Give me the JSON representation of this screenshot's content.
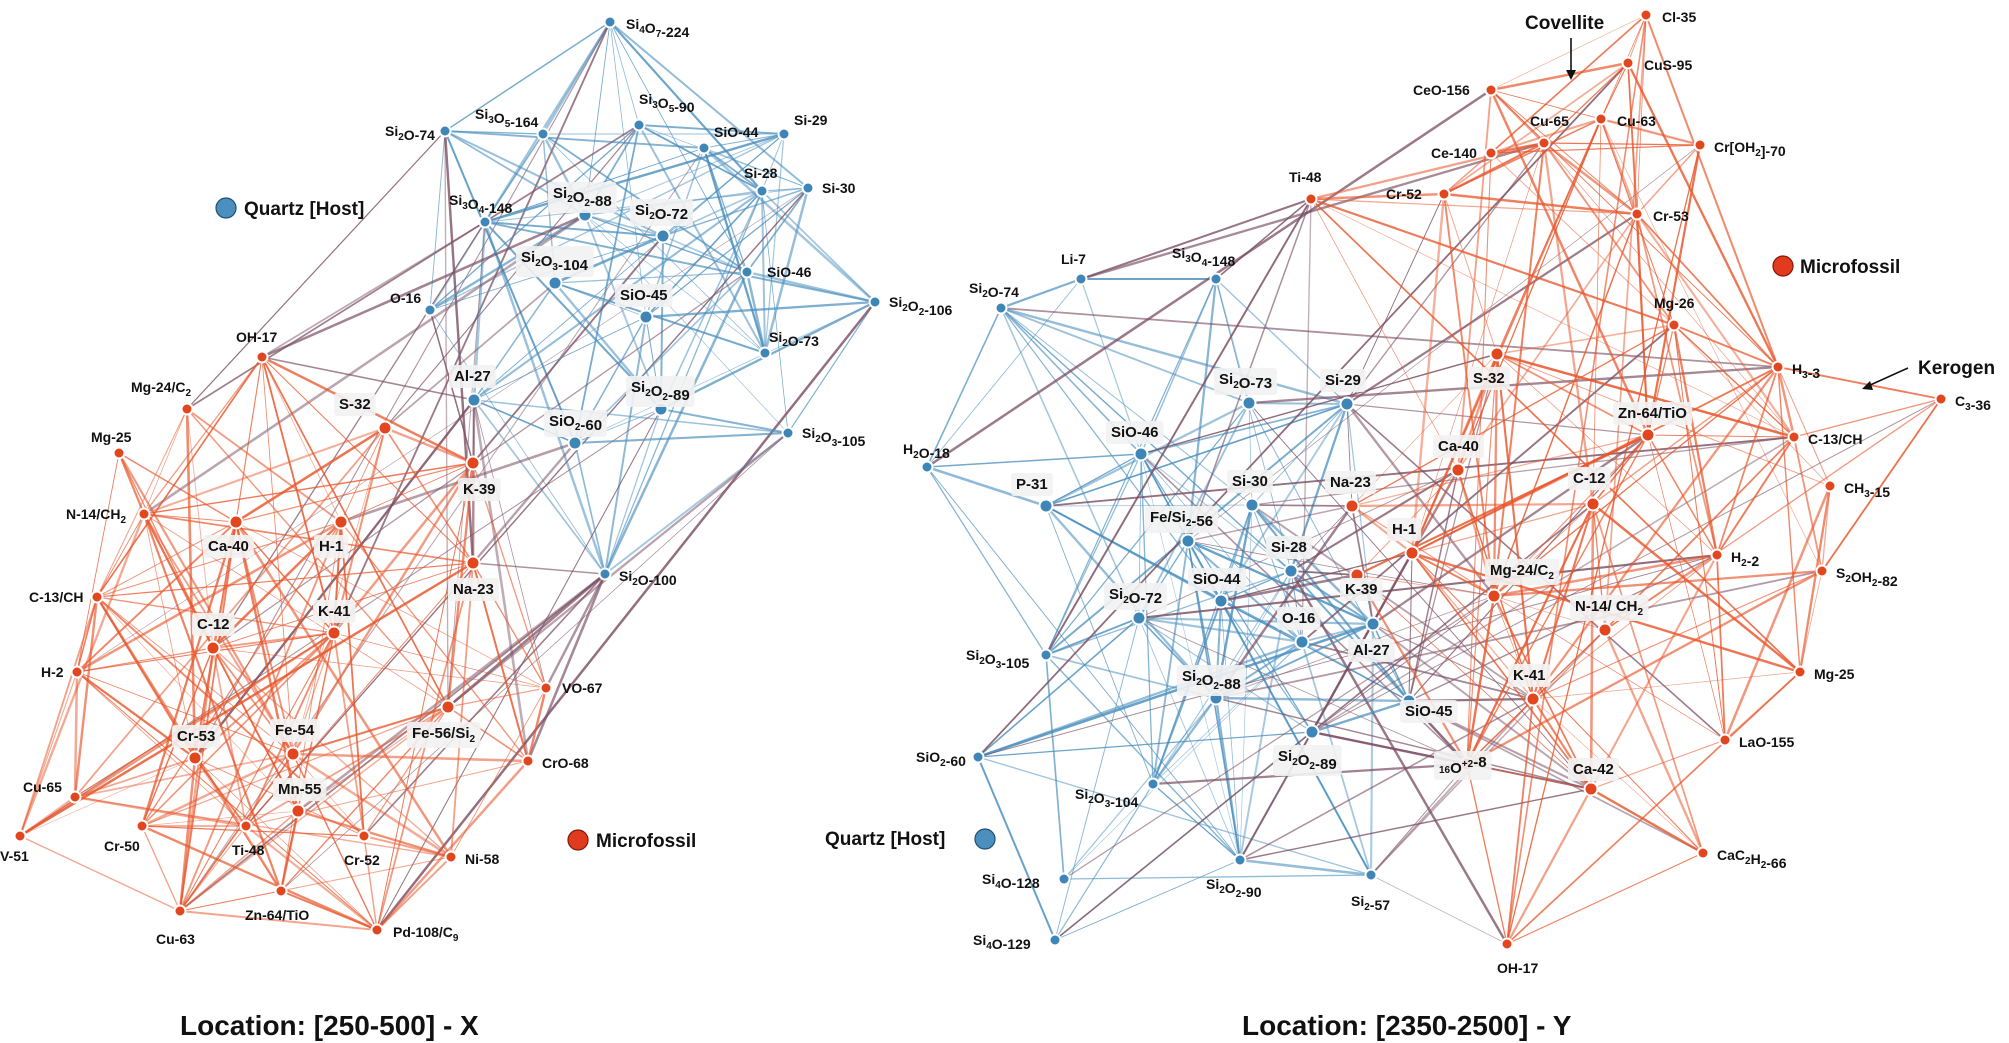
{
  "legend": {
    "quartz": "Quartz [Host]",
    "microfossil": "Microfossil"
  },
  "colors": {
    "quartz": "#4a8fbd",
    "microfossil": "#e8552a",
    "mixed": "#7a4e62",
    "label_box": "#f2f2f2"
  },
  "networks": [
    {
      "title": "Location: [250-500] - X",
      "quartz_nodes": [
        "Si4O7-224",
        "Si3O5-164",
        "Si3O5-90",
        "Si2O-74",
        "SiO-44",
        "Si-29",
        "Si-28",
        "Si-30",
        "Si3O4-148",
        "Si2O2-88",
        "Si2O-72",
        "SiO-46",
        "O-16",
        "Si2O3-104",
        "SiO-45",
        "Si2O2-106",
        "Si2O-73",
        "Al-27",
        "Si2O2-89",
        "SiO2-60",
        "Si2O3-105",
        "Si2O-100"
      ],
      "microfossil_nodes": [
        "OH-17",
        "Mg-24/C2",
        "Mg-25",
        "S-32",
        "N-14/CH2",
        "Ca-40",
        "H-1",
        "K-39",
        "C-13/CH",
        "Na-23",
        "K-41",
        "C-12",
        "H-2",
        "VO-67",
        "Fe-56/Si2",
        "Cr-53",
        "Fe-54",
        "CrO-68",
        "Mn-55",
        "Cu-65",
        "Cr-50",
        "Ti-48",
        "Cr-52",
        "Ni-58",
        "V-51",
        "Zn-64/TiO",
        "Cu-63",
        "Pd-108/C9"
      ]
    },
    {
      "title": "Location: [2350-2500] - Y",
      "annotations": [
        "Covellite",
        "Kerogen"
      ],
      "quartz_nodes": [
        "Si3O4-148",
        "Li-7",
        "Si2O-74",
        "Si-29",
        "Si2O-73",
        "SiO-46",
        "H2O-18",
        "P-31",
        "Si-30",
        "Fe/Si2-56",
        "Si-28",
        "SiO-44",
        "Si2O-72",
        "O-16",
        "Al-27",
        "Si2O3-105",
        "Si2O2-88",
        "SiO-45",
        "SiO2-60",
        "Si2O2-89",
        "Si2O3-104",
        "Si4O-128",
        "Si2O2-90",
        "Si2-57",
        "Si4O-129"
      ],
      "microfossil_nodes": [
        "Cl-35",
        "CuS-95",
        "CeO-156",
        "Cu-65",
        "Cu-63",
        "Cr[OH2]-70",
        "Ce-140",
        "Ti-48",
        "Cr-52",
        "Cr-53",
        "Mg-26",
        "H3-3",
        "S-32",
        "C3-36",
        "Zn-64/TiO",
        "Ca-40",
        "C-13/CH",
        "Na-23",
        "CH3-15",
        "C-12",
        "H-1",
        "H2-2",
        "Mg-24/C2",
        "S2OH2-82",
        "K-39",
        "N-14/ CH2",
        "Mg-25",
        "K-41",
        "LaO-155",
        "16O+2-8",
        "Ca-42",
        "CaC2H2-66",
        "OH-17"
      ]
    }
  ]
}
